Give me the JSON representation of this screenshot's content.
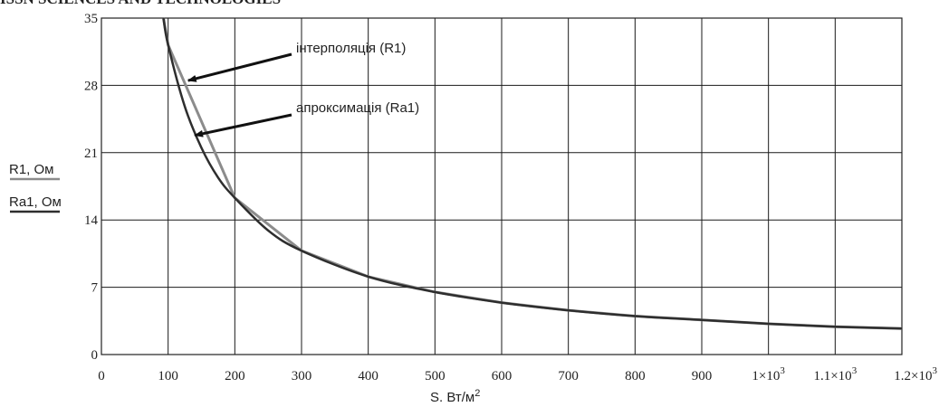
{
  "header_fragment": "ISSN SCIENCES AND TECHNOLOGIES",
  "chart_data": {
    "type": "line",
    "xlabel": "S. Вт/м",
    "xlabel_sup": "2",
    "ylabels": [
      "R1, Ом",
      "Ra1, Ом"
    ],
    "xlim": [
      0,
      1200
    ],
    "ylim": [
      0,
      35
    ],
    "x_ticks": [
      0,
      100,
      200,
      300,
      400,
      500,
      600,
      700,
      800,
      900,
      1000,
      1100,
      1200
    ],
    "x_tick_labels": [
      {
        "base": "0",
        "sup": ""
      },
      {
        "base": "100",
        "sup": ""
      },
      {
        "base": "200",
        "sup": ""
      },
      {
        "base": "300",
        "sup": ""
      },
      {
        "base": "400",
        "sup": ""
      },
      {
        "base": "500",
        "sup": ""
      },
      {
        "base": "600",
        "sup": ""
      },
      {
        "base": "700",
        "sup": ""
      },
      {
        "base": "800",
        "sup": ""
      },
      {
        "base": "900",
        "sup": ""
      },
      {
        "base": "1×10",
        "sup": "3"
      },
      {
        "base": "1.1×10",
        "sup": "3"
      },
      {
        "base": "1.2×10",
        "sup": "3"
      }
    ],
    "y_ticks": [
      0,
      7,
      14,
      21,
      28,
      35
    ],
    "grid": true,
    "series": [
      {
        "name": "інтерполяція (R1)",
        "color": "#8c8c8c",
        "x": [
          93,
          100,
          200,
          300,
          400,
          500,
          600,
          700,
          800,
          900,
          1000,
          1100,
          1200
        ],
        "y": [
          35,
          32.2,
          16.3,
          10.8,
          8.1,
          6.5,
          5.4,
          4.6,
          4.0,
          3.6,
          3.2,
          2.9,
          2.7
        ]
      },
      {
        "name": "апроксимація (Ra1)",
        "color": "#2e2e2e",
        "x": [
          93,
          100,
          125,
          150,
          175,
          200,
          250,
          300,
          400,
          500,
          600,
          700,
          800,
          900,
          1000,
          1100,
          1200
        ],
        "y": [
          35,
          32.2,
          25.8,
          21.5,
          18.4,
          16.3,
          12.9,
          10.8,
          8.1,
          6.5,
          5.4,
          4.6,
          4.0,
          3.6,
          3.2,
          2.9,
          2.7
        ]
      }
    ],
    "annotations": [
      {
        "text": "інтерполяція (R1)",
        "arrow_to": [
          130,
          28.5
        ]
      },
      {
        "text": "апроксимація (Ra1)",
        "arrow_to": [
          140,
          22.8
        ]
      }
    ]
  }
}
